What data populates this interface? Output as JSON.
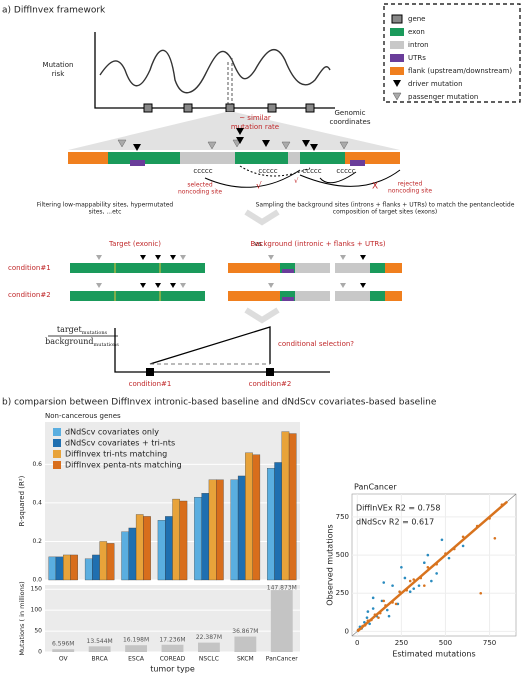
{
  "diagram": {
    "title": "a) DiffInvex framework",
    "legend": [
      "gene",
      "exon",
      "intron",
      "UTRs",
      "flank (upstream/downstream)",
      "driver mutation",
      "passenger mutation"
    ],
    "mutation_risk": [
      "Mutation",
      "risk"
    ],
    "genomic_coordinates": [
      "Genomic",
      "coordinates"
    ],
    "similar_rate": [
      "~ similar",
      "mutation rate"
    ],
    "site_labels": [
      "ccccc",
      "ccccc",
      "ccccc",
      "ccccc"
    ],
    "selected": [
      "selected",
      "noncoding site"
    ],
    "rejected": [
      "rejected",
      "noncoding site"
    ],
    "check": "√",
    "cross": "X",
    "filtering": [
      "Filtering low-mappability sites, hypermutated",
      "sites, ...etc"
    ],
    "sampling": [
      "Sampling the background sites (introns + flanks + UTRs) to match the pentancleotide",
      "composition of target sites (exons)"
    ],
    "target": "Target (exonic)",
    "vs": "vs",
    "background": "Background (intronic + flanks + UTRs)",
    "conditions": [
      "condition#1",
      "condition#2"
    ],
    "ratio": {
      "num": "target",
      "num_sub": "mutations",
      "den": "background",
      "den_sub": "mutations"
    },
    "conditional": "conditional selection?",
    "axis_conditions": [
      "condition#1",
      "condition#2"
    ]
  },
  "section_b": {
    "title": "b) comparsion between DiffInvex intronic-based baseline and dNdScv covariates-based baseline",
    "subtitle": "Non-cancerous genes"
  },
  "chart_data": [
    {
      "type": "bar",
      "y_label": "R-squared (R²)",
      "ylim": [
        0,
        0.82
      ],
      "yticks": [
        {
          "value": 0,
          "label": "0.0"
        },
        0.2,
        0.4,
        0.6
      ],
      "series": [
        {
          "name": "dNdScv covariates only",
          "color": "#5aaee0",
          "values": [
            0.12,
            0.11,
            0.25,
            0.31,
            0.43,
            0.52,
            0.58
          ]
        },
        {
          "name": "dNdScv covariates + tri-nts",
          "color": "#1f6fb0",
          "values": [
            0.12,
            0.13,
            0.27,
            0.33,
            0.45,
            0.54,
            0.61
          ]
        },
        {
          "name": "DiffInvex tri-nts matching",
          "color": "#e8a33a",
          "values": [
            0.13,
            0.2,
            0.34,
            0.42,
            0.52,
            0.66,
            0.77
          ]
        },
        {
          "name": "DiffInvex penta-nts matching",
          "color": "#d86e1c",
          "values": [
            0.13,
            0.19,
            0.33,
            0.41,
            0.52,
            0.65,
            0.76
          ]
        }
      ]
    },
    {
      "type": "bar",
      "y_label": "Mutations ( in millions)",
      "x_label": "tumor type",
      "categories": [
        "OV",
        "BRCA",
        "ESCA",
        "COREAD",
        "NSCLC",
        "SKCM",
        "PanCancer"
      ],
      "values": [
        6.596,
        13.544,
        16.198,
        17.236,
        22.387,
        36.867,
        147.873
      ],
      "value_labels": [
        "6.596M",
        "13.544M",
        "16.198M",
        "17.236M",
        "22.387M",
        "36.867M",
        "147.873M"
      ],
      "color": "#c4c4c4",
      "ylim": [
        0,
        160
      ],
      "yticks": [
        0,
        50,
        100,
        150
      ]
    },
    {
      "type": "scatter",
      "title": "PanCancer",
      "x_label": "Estimated mutations",
      "y_label": "Observed mutations",
      "xlim": [
        -30,
        900
      ],
      "ylim": [
        -30,
        900
      ],
      "xticks": [
        0,
        250,
        500,
        750
      ],
      "yticks": [
        0,
        250,
        500,
        750
      ],
      "series": [
        {
          "name": "dNdScv R2 = 0.617",
          "color": "#2a8bbf",
          "x": [
            5,
            15,
            25,
            40,
            55,
            70,
            90,
            110,
            140,
            170,
            200,
            230,
            270,
            300,
            350,
            400,
            450,
            520,
            600,
            150,
            90,
            250,
            320,
            60,
            420,
            480,
            180,
            380
          ],
          "y": [
            10,
            30,
            20,
            60,
            90,
            50,
            150,
            100,
            200,
            140,
            300,
            180,
            350,
            260,
            300,
            500,
            380,
            480,
            560,
            320,
            220,
            420,
            280,
            130,
            330,
            600,
            100,
            450
          ]
        },
        {
          "name": "DiffInVEx R2 = 0.758",
          "color": "#d8731e",
          "x": [
            5,
            12,
            20,
            30,
            45,
            60,
            80,
            100,
            130,
            160,
            200,
            240,
            280,
            320,
            360,
            400,
            450,
            500,
            550,
            600,
            680,
            750,
            820,
            150,
            220,
            300,
            120,
            380,
            700,
            780
          ],
          "y": [
            8,
            15,
            18,
            35,
            40,
            70,
            75,
            110,
            120,
            170,
            190,
            260,
            270,
            340,
            350,
            420,
            440,
            510,
            540,
            620,
            690,
            740,
            830,
            200,
            180,
            330,
            90,
            300,
            250,
            610
          ]
        }
      ]
    }
  ]
}
